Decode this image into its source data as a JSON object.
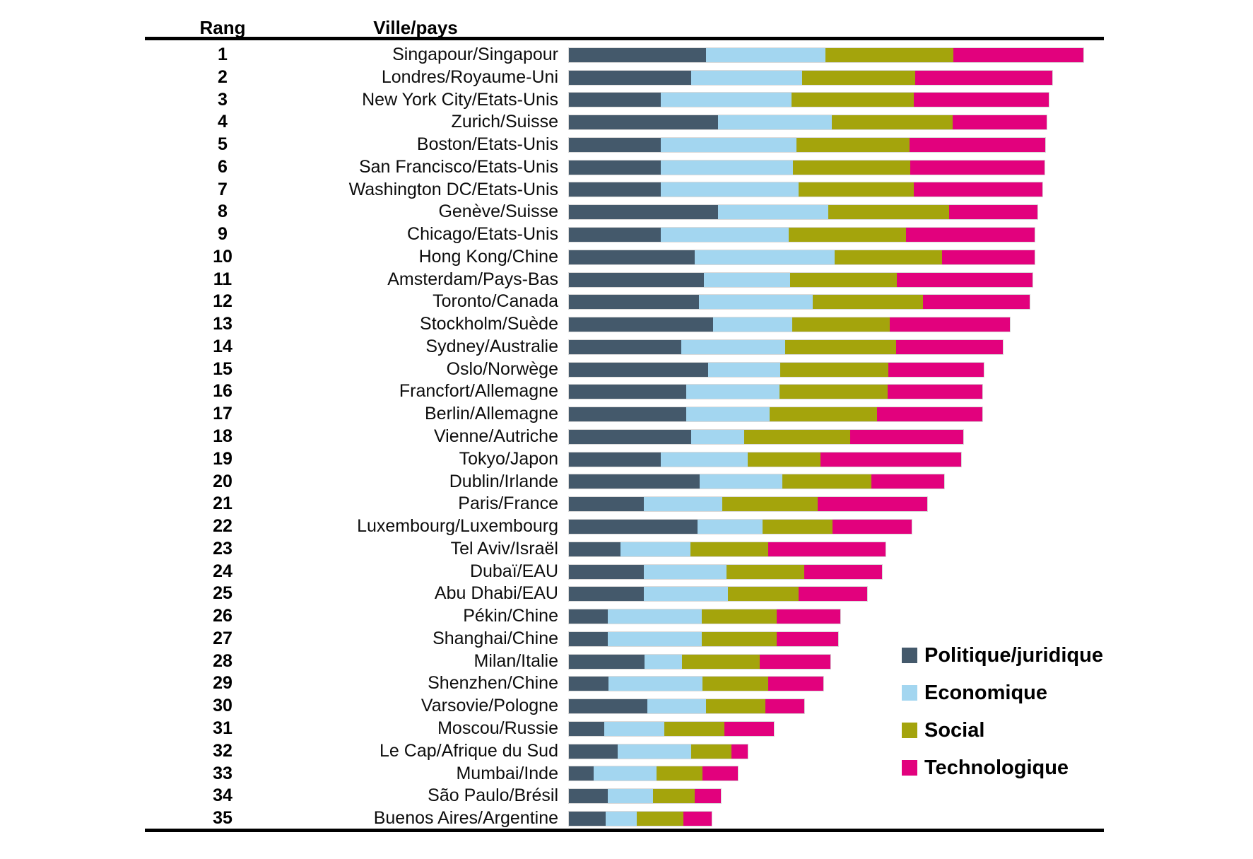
{
  "table": {
    "rank_header": "Rang",
    "city_header": "Ville/pays"
  },
  "chart_data": {
    "type": "bar",
    "orientation": "horizontal",
    "stacked": true,
    "grid": false,
    "legend_position": "bottom-right",
    "value_note": "Estimated index points read from bar lengths; total for rank 1 (Singapour) = 100",
    "xlim": [
      0,
      100
    ],
    "ranks": [
      1,
      2,
      3,
      4,
      5,
      6,
      7,
      8,
      9,
      10,
      11,
      12,
      13,
      14,
      15,
      16,
      17,
      18,
      19,
      20,
      21,
      22,
      23,
      24,
      25,
      26,
      27,
      28,
      29,
      30,
      31,
      32,
      33,
      34,
      35
    ],
    "categories": [
      "Singapour/Singapour",
      "Londres/Royaume-Uni",
      "New York City/Etats-Unis",
      "Zurich/Suisse",
      "Boston/Etats-Unis",
      "San Francisco/Etats-Unis",
      "Washington DC/Etats-Unis",
      "Genève/Suisse",
      "Chicago/Etats-Unis",
      "Hong Kong/Chine",
      "Amsterdam/Pays-Bas",
      "Toronto/Canada",
      "Stockholm/Suède",
      "Sydney/Australie",
      "Oslo/Norwège",
      "Francfort/Allemagne",
      "Berlin/Allemagne",
      "Vienne/Autriche",
      "Tokyo/Japon",
      "Dublin/Irlande",
      "Paris/France",
      "Luxembourg/Luxembourg",
      "Tel Aviv/Israël",
      "Dubaï/EAU",
      "Abu Dhabi/EAU",
      "Pékin/Chine",
      "Shanghai/Chine",
      "Milan/Italie",
      "Shenzhen/Chine",
      "Varsovie/Pologne",
      "Moscou/Russie",
      "Le Cap/Afrique du Sud",
      "Mumbai/Inde",
      "São Paulo/Brésil",
      "Buenos Aires/Argentine"
    ],
    "series": [
      {
        "name": "Politique/juridique",
        "color": "#44596b",
        "values": [
          26.6,
          23.8,
          17.9,
          29.0,
          17.9,
          17.9,
          17.9,
          29.0,
          17.9,
          24.5,
          26.2,
          25.3,
          28.0,
          21.8,
          27.1,
          22.8,
          22.8,
          23.7,
          17.9,
          25.4,
          14.5,
          25.0,
          10.0,
          14.5,
          14.5,
          7.6,
          7.6,
          14.7,
          7.7,
          15.3,
          6.8,
          9.5,
          4.8,
          7.5,
          7.2
        ]
      },
      {
        "name": "Economique",
        "color": "#a3d6f0",
        "values": [
          23.3,
          21.6,
          25.4,
          22.1,
          26.3,
          25.7,
          26.7,
          21.4,
          24.8,
          27.1,
          16.8,
          22.1,
          15.4,
          20.2,
          14.0,
          18.1,
          16.2,
          10.3,
          16.9,
          16.1,
          15.3,
          12.6,
          13.7,
          16.1,
          16.4,
          18.3,
          18.2,
          7.3,
          18.2,
          11.3,
          11.8,
          14.2,
          12.2,
          8.9,
          6.0
        ]
      },
      {
        "name": "Social",
        "color": "#a4a40c",
        "values": [
          24.8,
          21.9,
          23.7,
          23.5,
          22.0,
          22.7,
          22.5,
          23.5,
          22.8,
          20.9,
          20.7,
          21.4,
          19.0,
          21.6,
          21.0,
          21.0,
          20.9,
          20.6,
          14.1,
          17.3,
          18.5,
          13.6,
          15.1,
          15.1,
          13.8,
          14.5,
          14.6,
          15.1,
          12.9,
          11.6,
          11.6,
          7.9,
          9.0,
          8.0,
          9.0
        ]
      },
      {
        "name": "Technologique",
        "color": "#e2017d",
        "values": [
          25.3,
          26.7,
          26.3,
          18.2,
          26.4,
          26.2,
          25.0,
          17.2,
          25.1,
          18.0,
          26.4,
          20.8,
          23.3,
          20.7,
          18.5,
          18.5,
          20.5,
          22.0,
          27.4,
          14.2,
          21.4,
          15.5,
          22.7,
          15.1,
          13.2,
          12.3,
          11.9,
          13.7,
          10.6,
          7.6,
          9.7,
          3.2,
          6.8,
          5.1,
          5.5
        ]
      }
    ]
  }
}
